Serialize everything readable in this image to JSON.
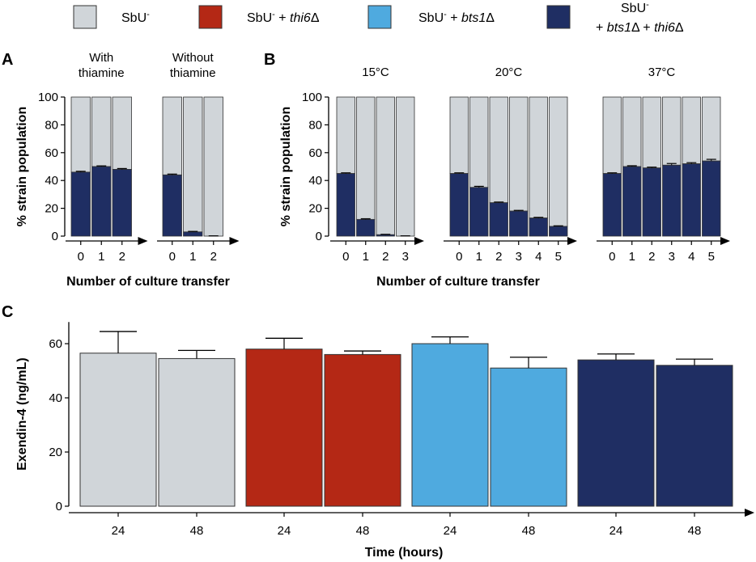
{
  "legend": {
    "items": [
      {
        "base": "SbU",
        "sup": "-",
        "mod": "",
        "color": "#d0d5d9"
      },
      {
        "base": "SbU",
        "sup": "-",
        "mod": " + thi6Δ",
        "italic": "thi6",
        "color": "#b42815"
      },
      {
        "base": "SbU",
        "sup": "-",
        "mod": " + bts1Δ",
        "italic": "bts1",
        "color": "#4faadf"
      },
      {
        "base": "SbU",
        "sup": "-",
        "line2": "+ bts1Δ + thi6Δ",
        "color": "#1f2e63"
      }
    ]
  },
  "colors": {
    "sbu": "#d0d5d9",
    "thi6": "#b42815",
    "bts1": "#4faadf",
    "double": "#1f2e63"
  },
  "chart_data": [
    {
      "panel": "A",
      "type": "bar",
      "stacked": true,
      "ylabel": "% strain population",
      "xlabel": "Number of culture transfer",
      "ylim": [
        0,
        100
      ],
      "yticks": [
        0,
        20,
        40,
        60,
        80,
        100
      ],
      "groups": [
        {
          "title": "With\nthiamine",
          "categories": [
            "0",
            "1",
            "2"
          ],
          "values": [
            46,
            50,
            48
          ],
          "errors": [
            0.6,
            0.5,
            0.6
          ]
        },
        {
          "title": "Without\nthiamine",
          "categories": [
            "0",
            "1",
            "2"
          ],
          "values": [
            44,
            3,
            0
          ],
          "errors": [
            0.6,
            0.4,
            0.2
          ]
        }
      ],
      "series": [
        {
          "name": "SbU- + bts1Δ + thi6Δ",
          "color": "#1f2e63"
        },
        {
          "name": "SbU-",
          "color": "#d0d5d9"
        }
      ]
    },
    {
      "panel": "B",
      "type": "bar",
      "stacked": true,
      "ylabel": "% strain population",
      "xlabel": "Number of culture transfer",
      "ylim": [
        0,
        100
      ],
      "yticks": [
        0,
        20,
        40,
        60,
        80,
        100
      ],
      "groups": [
        {
          "title": "15°C",
          "categories": [
            "0",
            "1",
            "2",
            "3"
          ],
          "values": [
            45,
            12,
            1,
            0
          ],
          "errors": [
            0.5,
            0.5,
            0.3,
            0.2
          ]
        },
        {
          "title": "20°C",
          "categories": [
            "0",
            "1",
            "2",
            "3",
            "4",
            "5"
          ],
          "values": [
            45,
            35,
            24,
            18,
            13,
            7
          ],
          "errors": [
            0.5,
            0.8,
            0.5,
            0.5,
            0.5,
            0.4
          ]
        },
        {
          "title": "37°C",
          "categories": [
            "0",
            "1",
            "2",
            "3",
            "4",
            "5"
          ],
          "values": [
            45,
            50,
            49,
            51,
            52,
            54
          ],
          "errors": [
            0.5,
            0.6,
            0.6,
            1.2,
            0.8,
            1.2
          ]
        }
      ],
      "series": [
        {
          "name": "SbU- + bts1Δ + thi6Δ",
          "color": "#1f2e63"
        },
        {
          "name": "SbU-",
          "color": "#d0d5d9"
        }
      ]
    },
    {
      "panel": "C",
      "type": "bar",
      "ylabel": "Exendin-4 (ng/mL)",
      "xlabel": "Time (hours)",
      "ylim": [
        0,
        68
      ],
      "yticks": [
        0,
        20,
        40,
        60
      ],
      "categories": [
        "24",
        "48",
        "24",
        "48",
        "24",
        "48",
        "24",
        "48"
      ],
      "values": [
        56.5,
        54.5,
        58,
        56,
        60,
        51,
        54,
        52
      ],
      "errors": [
        8,
        3,
        4,
        1.3,
        2.5,
        4,
        2.2,
        2.3
      ],
      "bar_colors": [
        "#d0d5d9",
        "#d0d5d9",
        "#b42815",
        "#b42815",
        "#4faadf",
        "#4faadf",
        "#1f2e63",
        "#1f2e63"
      ]
    }
  ]
}
